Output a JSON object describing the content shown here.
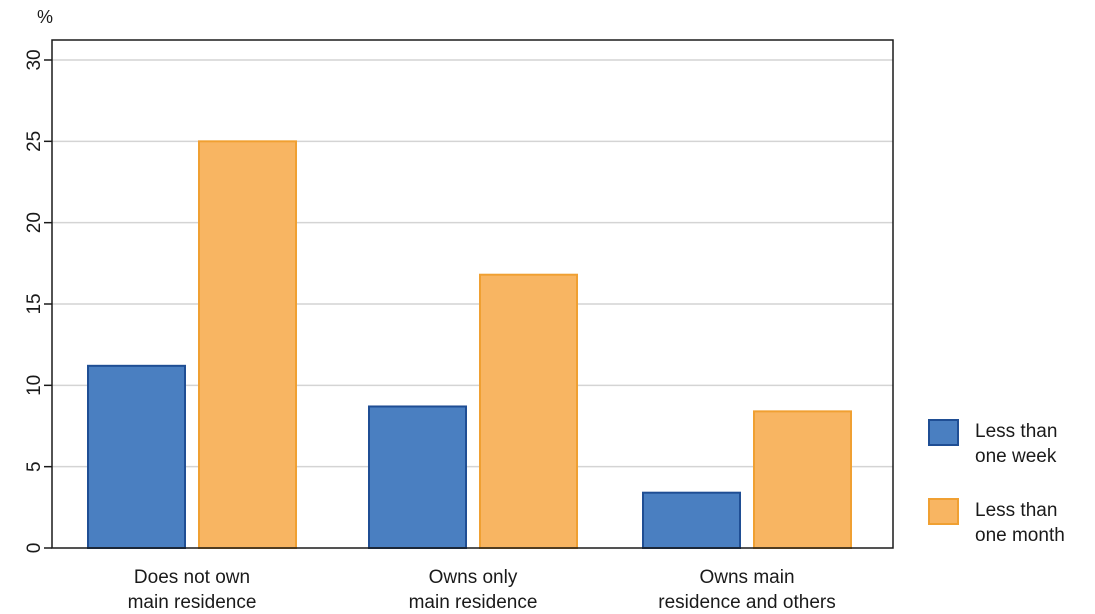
{
  "chart_data": {
    "type": "bar",
    "unit_label": "%",
    "categories": [
      [
        "Does not own",
        "main residence"
      ],
      [
        "Owns only",
        "main residence"
      ],
      [
        "Owns main",
        "residence and others"
      ]
    ],
    "series": [
      {
        "name": [
          "Less than",
          "one week"
        ],
        "values": [
          11.2,
          8.7,
          3.4
        ],
        "fill": "#4a7fc1",
        "stroke": "#1f4e94"
      },
      {
        "name": [
          "Less than",
          "one month"
        ],
        "values": [
          25.0,
          16.8,
          8.4
        ],
        "fill": "#f8b562",
        "stroke": "#f0a032"
      }
    ],
    "ylim": [
      0,
      30
    ],
    "yticks": [
      "0",
      "5",
      "10",
      "15",
      "20",
      "25",
      "30"
    ],
    "grid": true,
    "legend_position": "right",
    "colors": {
      "gridline": "#d4d4d4",
      "axis": "#1a1a1a"
    }
  }
}
